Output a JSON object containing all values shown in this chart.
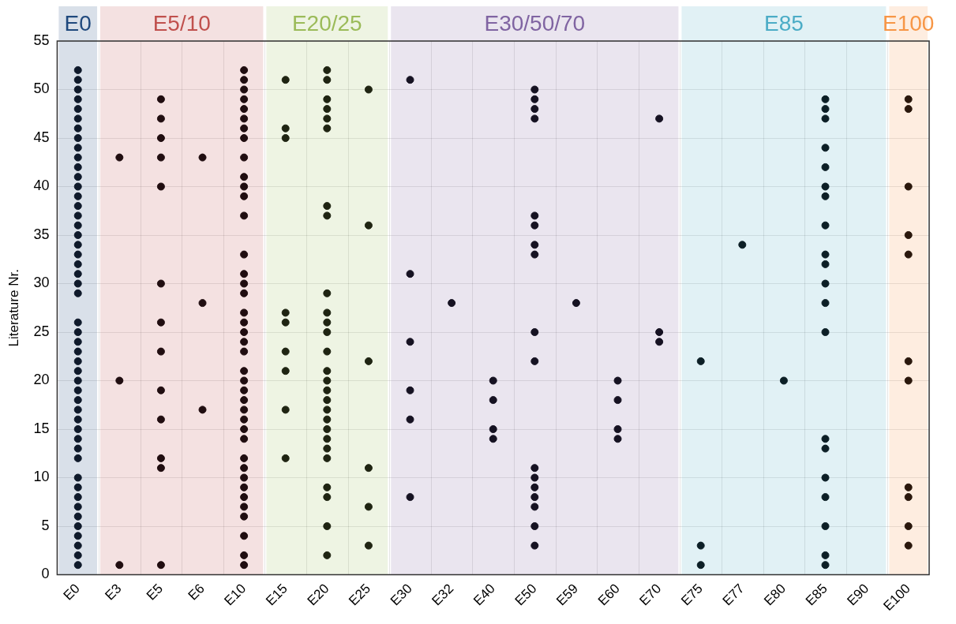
{
  "chart_data": {
    "type": "scatter",
    "ylabel": "Literature Nr.",
    "categories": [
      "E0",
      "E3",
      "E5",
      "E6",
      "E10",
      "E15",
      "E20",
      "E25",
      "E30",
      "E32",
      "E40",
      "E50",
      "E59",
      "E60",
      "E70",
      "E75",
      "E77",
      "E80",
      "E85",
      "E90",
      "E100"
    ],
    "ylim": [
      0,
      55
    ],
    "yticks": [
      0,
      5,
      10,
      15,
      20,
      25,
      30,
      35,
      40,
      45,
      50,
      55
    ],
    "grid": true,
    "marker": "circle",
    "series": [
      {
        "color": "#0f1a2b",
        "x": [
          "E0",
          "E0",
          "E0",
          "E0",
          "E0",
          "E0",
          "E0",
          "E0",
          "E0",
          "E0",
          "E0",
          "E0",
          "E0",
          "E0",
          "E0",
          "E0",
          "E0",
          "E0",
          "E0",
          "E0",
          "E0",
          "E0",
          "E0",
          "E0",
          "E0",
          "E0",
          "E0",
          "E0",
          "E0",
          "E0",
          "E0",
          "E0",
          "E0",
          "E0",
          "E0",
          "E0",
          "E0",
          "E0",
          "E0",
          "E0",
          "E0",
          "E0",
          "E0",
          "E0",
          "E0",
          "E0",
          "E0",
          "E0",
          "E0"
        ],
        "values": [
          1,
          2,
          3,
          4,
          5,
          6,
          7,
          8,
          9,
          10,
          12,
          13,
          14,
          15,
          16,
          17,
          18,
          19,
          20,
          21,
          22,
          23,
          24,
          25,
          26,
          29,
          30,
          31,
          32,
          33,
          34,
          35,
          36,
          37,
          38,
          39,
          40,
          41,
          42,
          43,
          44,
          45,
          46,
          47,
          48,
          49,
          50,
          51,
          52
        ]
      },
      {
        "color": "#200d10",
        "x": [
          "E3",
          "E3",
          "E3",
          "E5",
          "E5",
          "E5",
          "E5",
          "E5",
          "E5",
          "E5",
          "E5",
          "E5",
          "E5",
          "E5",
          "E5",
          "E5",
          "E6",
          "E6",
          "E6",
          "E10",
          "E10",
          "E10",
          "E10",
          "E10",
          "E10",
          "E10",
          "E10",
          "E10",
          "E10",
          "E10",
          "E10",
          "E10",
          "E10",
          "E10",
          "E10",
          "E10",
          "E10",
          "E10",
          "E10",
          "E10",
          "E10",
          "E10",
          "E10",
          "E10",
          "E10",
          "E10",
          "E10",
          "E10",
          "E10",
          "E10",
          "E10",
          "E10",
          "E10",
          "E10",
          "E10",
          "E10",
          "E10",
          "E10",
          "E10"
        ],
        "values": [
          43,
          20,
          1,
          49,
          47,
          45,
          43,
          40,
          30,
          26,
          23,
          19,
          16,
          12,
          11,
          1,
          43,
          28,
          17,
          52,
          51,
          50,
          49,
          48,
          47,
          46,
          45,
          43,
          41,
          40,
          39,
          37,
          33,
          31,
          30,
          29,
          27,
          26,
          25,
          24,
          23,
          21,
          20,
          19,
          18,
          17,
          16,
          15,
          14,
          12,
          11,
          10,
          9,
          8,
          7,
          6,
          4,
          2,
          1
        ]
      },
      {
        "color": "#1f2412",
        "x": [
          "E15",
          "E15",
          "E15",
          "E15",
          "E15",
          "E15",
          "E15",
          "E15",
          "E15",
          "E20",
          "E20",
          "E20",
          "E20",
          "E20",
          "E20",
          "E20",
          "E20",
          "E20",
          "E20",
          "E20",
          "E20",
          "E20",
          "E20",
          "E20",
          "E20",
          "E20",
          "E20",
          "E20",
          "E20",
          "E20",
          "E20",
          "E20",
          "E20",
          "E20",
          "E20",
          "E20",
          "E25",
          "E25",
          "E25",
          "E25",
          "E25",
          "E25"
        ],
        "values": [
          51,
          46,
          45,
          27,
          26,
          23,
          21,
          17,
          12,
          52,
          51,
          49,
          48,
          47,
          46,
          38,
          37,
          29,
          27,
          26,
          25,
          23,
          21,
          20,
          19,
          18,
          17,
          16,
          15,
          14,
          13,
          12,
          9,
          8,
          5,
          2,
          50,
          36,
          22,
          11,
          7,
          3
        ]
      },
      {
        "color": "#161222",
        "x": [
          "E30",
          "E30",
          "E30",
          "E30",
          "E30",
          "E30",
          "E32",
          "E40",
          "E40",
          "E40",
          "E40",
          "E50",
          "E50",
          "E50",
          "E50",
          "E50",
          "E50",
          "E50",
          "E50",
          "E50",
          "E50",
          "E50",
          "E50",
          "E50",
          "E50",
          "E50",
          "E50",
          "E50",
          "E59",
          "E60",
          "E60",
          "E60",
          "E60",
          "E70",
          "E70",
          "E70"
        ],
        "values": [
          51,
          31,
          24,
          19,
          16,
          8,
          28,
          20,
          18,
          15,
          14,
          50,
          49,
          48,
          47,
          37,
          36,
          34,
          33,
          25,
          22,
          11,
          10,
          9,
          8,
          7,
          5,
          3,
          28,
          20,
          18,
          15,
          14,
          47,
          25,
          24
        ]
      },
      {
        "color": "#0c1f26",
        "x": [
          "E75",
          "E75",
          "E75",
          "E77",
          "E80",
          "E85",
          "E85",
          "E85",
          "E85",
          "E85",
          "E85",
          "E85",
          "E85",
          "E85",
          "E85",
          "E85",
          "E85",
          "E85",
          "E85",
          "E85",
          "E85",
          "E85",
          "E85",
          "E85",
          "E85"
        ],
        "values": [
          22,
          3,
          1,
          34,
          20,
          49,
          48,
          47,
          44,
          42,
          40,
          39,
          36,
          33,
          32,
          30,
          28,
          25,
          14,
          13,
          10,
          8,
          5,
          2,
          1
        ]
      },
      {
        "color": "#2a170c",
        "x": [
          "E100",
          "E100",
          "E100",
          "E100",
          "E100",
          "E100",
          "E100",
          "E100",
          "E100",
          "E100",
          "E100"
        ],
        "values": [
          49,
          48,
          40,
          35,
          33,
          22,
          20,
          9,
          8,
          5,
          3
        ]
      }
    ],
    "bands": [
      {
        "axis": "x",
        "from": "E0",
        "to": "E0",
        "label": "E0",
        "color": "#1f497d"
      },
      {
        "axis": "x",
        "from": "E3",
        "to": "E10",
        "label": "E5/10",
        "color": "#c0504d"
      },
      {
        "axis": "x",
        "from": "E15",
        "to": "E25",
        "label": "E20/25",
        "color": "#9bbb59"
      },
      {
        "axis": "x",
        "from": "E30",
        "to": "E70",
        "label": "E30/50/70",
        "color": "#8064a2"
      },
      {
        "axis": "x",
        "from": "E75",
        "to": "E90",
        "label": "E85",
        "color": "#4bacc6"
      },
      {
        "axis": "x",
        "from": "E100",
        "to": "E100",
        "label": "E100",
        "color": "#f79646"
      }
    ]
  }
}
